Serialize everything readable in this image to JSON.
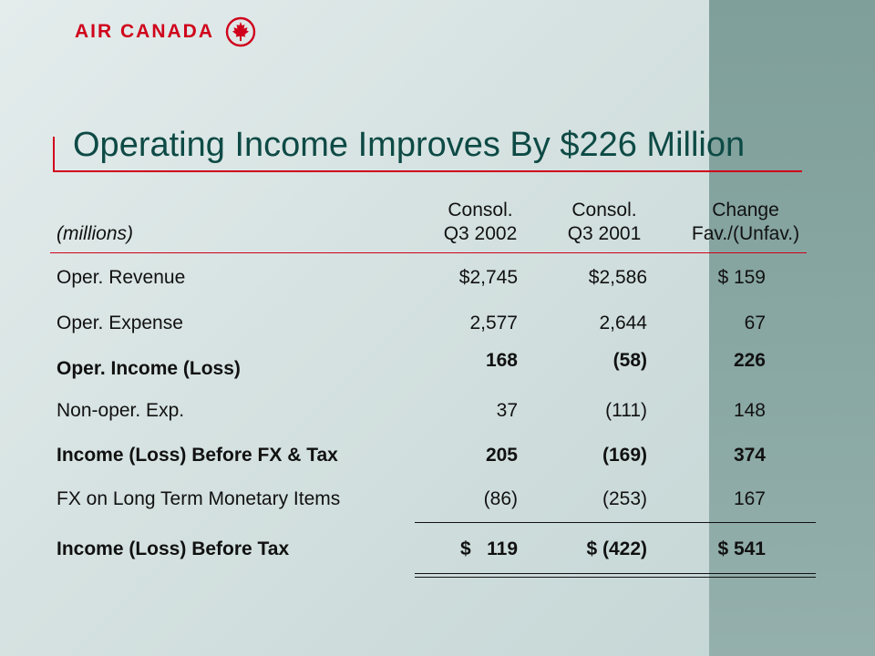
{
  "logo": {
    "text": "AIR CANADA",
    "brand_color": "#d0021b",
    "icon": "maple-leaf-roundel-icon"
  },
  "title": "Operating Income Improves By $226 Million",
  "table": {
    "unit_label": "(millions)",
    "headers": [
      {
        "line1": "Consol.",
        "line2": "Q3 2002"
      },
      {
        "line1": "Consol.",
        "line2": "Q3 2001"
      },
      {
        "line1": "Change",
        "line2": "Fav./(Unfav.)"
      }
    ],
    "rows": [
      {
        "label": "Oper. Revenue",
        "q3_2002": "$2,745",
        "q3_2001": "$2,586",
        "change": "$ 159",
        "bold": false
      },
      {
        "label": "Oper. Expense",
        "q3_2002": "2,577",
        "q3_2001": "2,644",
        "change": "67",
        "bold": false
      },
      {
        "label": "Oper. Income (Loss)",
        "q3_2002": "168",
        "q3_2001": "(58)",
        "change": "226",
        "bold": true
      },
      {
        "label": "Non-oper. Exp.",
        "q3_2002": "37",
        "q3_2001": "(111)",
        "change": "148",
        "bold": false
      },
      {
        "label": "Income (Loss) Before FX & Tax",
        "q3_2002": "205",
        "q3_2001": "(169)",
        "change": "374",
        "bold": true
      },
      {
        "label": "FX on Long Term Monetary Items",
        "q3_2002": "(86)",
        "q3_2001": "(253)",
        "change": "167",
        "bold": false
      },
      {
        "label": "Income (Loss) Before Tax",
        "q3_2002": "$   119",
        "q3_2001": "$ (422)",
        "change": "$ 541",
        "bold": true
      }
    ]
  }
}
